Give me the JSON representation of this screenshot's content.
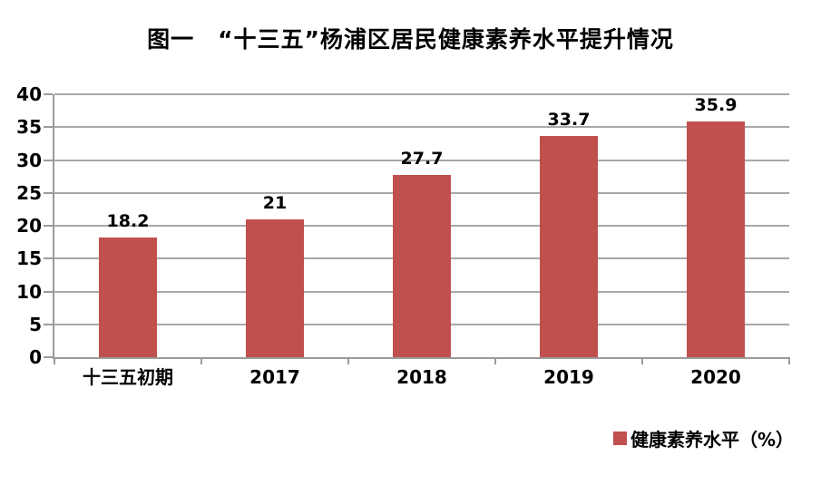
{
  "chart_title": "图一　“十三五”杨浦区居民健康素养水平提升情况",
  "chart_data": {
    "type": "bar",
    "title": "图一　“十三五”杨浦区居民健康素养水平提升情况",
    "categories": [
      "十三五初期",
      "2017",
      "2018",
      "2019",
      "2020"
    ],
    "series": [
      {
        "name": "健康素养水平（%）",
        "values": [
          18.2,
          21,
          27.7,
          33.7,
          35.9
        ]
      }
    ],
    "data_labels": [
      "18.2",
      "21",
      "27.7",
      "33.7",
      "35.9"
    ],
    "ylabel": "",
    "xlabel": "",
    "ylim": [
      0,
      40
    ],
    "yticks": [
      0,
      5,
      10,
      15,
      20,
      25,
      30,
      35,
      40
    ],
    "grid": true,
    "legend": {
      "label": "健康素养水平（%）",
      "position": "bottom-right",
      "marker": "square"
    },
    "colors": {
      "bar": "#C0504D",
      "gridline": "#A8A8A8",
      "axis": "#9B9B9B",
      "text": "#000000",
      "background": "#FFFFFF"
    }
  }
}
